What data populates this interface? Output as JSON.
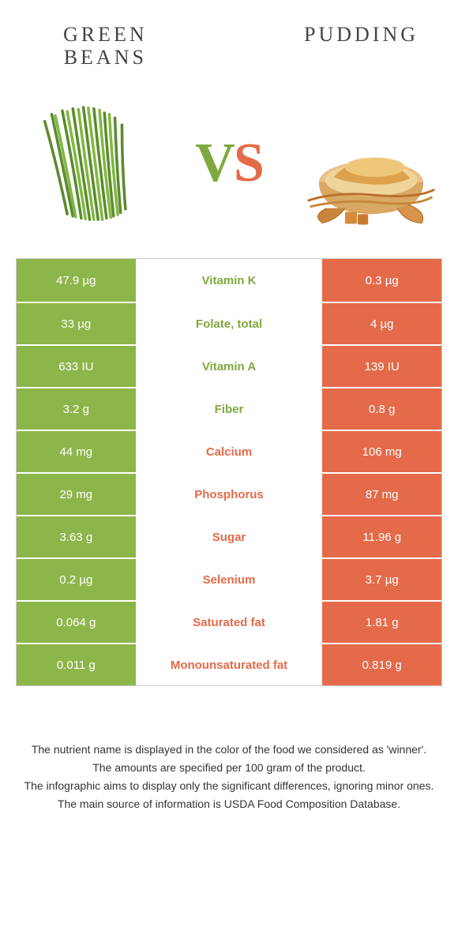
{
  "header": {
    "left_title_line1": "GREEN",
    "left_title_line2": "BEANS",
    "right_title": "PUDDING",
    "vs_v": "V",
    "vs_s": "S"
  },
  "colors": {
    "green": "#8cb64a",
    "orange": "#e46a4a",
    "text_green": "#7fa93e",
    "text_orange": "#e46a4a",
    "background": "#ffffff",
    "border": "#cccccc"
  },
  "images": {
    "left_alt": "green-beans",
    "right_alt": "pudding"
  },
  "rows": [
    {
      "left": "47.9 µg",
      "label": "Vitamin K",
      "right": "0.3 µg",
      "winner": "green"
    },
    {
      "left": "33 µg",
      "label": "Folate, total",
      "right": "4 µg",
      "winner": "green"
    },
    {
      "left": "633 IU",
      "label": "Vitamin A",
      "right": "139 IU",
      "winner": "green"
    },
    {
      "left": "3.2 g",
      "label": "Fiber",
      "right": "0.8 g",
      "winner": "green"
    },
    {
      "left": "44 mg",
      "label": "Calcium",
      "right": "106 mg",
      "winner": "orange"
    },
    {
      "left": "29 mg",
      "label": "Phosphorus",
      "right": "87 mg",
      "winner": "orange"
    },
    {
      "left": "3.63 g",
      "label": "Sugar",
      "right": "11.96 g",
      "winner": "orange"
    },
    {
      "left": "0.2 µg",
      "label": "Selenium",
      "right": "3.7 µg",
      "winner": "orange"
    },
    {
      "left": "0.064 g",
      "label": "Saturated fat",
      "right": "1.81 g",
      "winner": "orange"
    },
    {
      "left": "0.011 g",
      "label": "Monounsaturated fat",
      "right": "0.819 g",
      "winner": "orange"
    }
  ],
  "footnotes": [
    "The nutrient name is displayed in the color of the food we considered as 'winner'.",
    "The amounts are specified per 100 gram of the product.",
    "The infographic aims to display only the significant differences, ignoring minor ones.",
    "The main source of information is USDA Food Composition Database."
  ]
}
